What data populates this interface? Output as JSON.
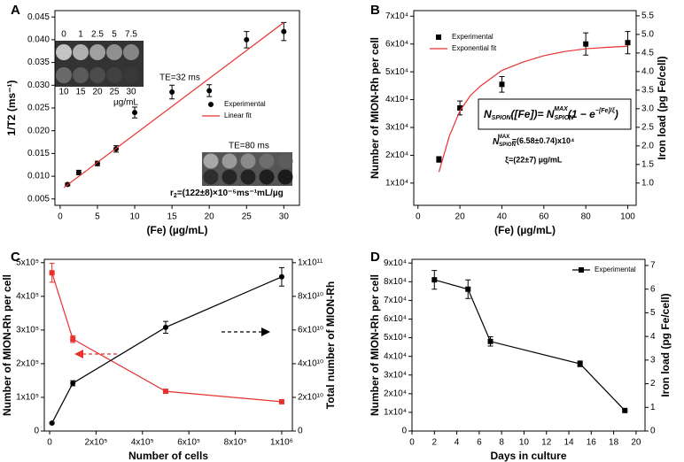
{
  "chart_data": [
    {
      "type": "scatter",
      "panel_label": "A",
      "xlabel": "(Fe) (µg/mL)",
      "ylabel": "1/T2 (ms⁻¹)",
      "xlim": [
        -0.7,
        32.1
      ],
      "xticks": [
        0,
        5,
        10,
        15,
        20,
        25,
        30
      ],
      "ylim": [
        0.0036,
        0.0464
      ],
      "yticks": [
        0.005,
        {
          "value": 0.01,
          "label": "0.010"
        },
        0.015,
        {
          "value": 0.02,
          "label": "0.020"
        },
        0.025,
        {
          "value": 0.03,
          "label": "0.030"
        },
        0.035,
        {
          "value": 0.04,
          "label": "0.040"
        },
        0.045
      ],
      "series": [
        {
          "name": "Experimental",
          "color": "#000000",
          "mode": "markers",
          "marker": "circle",
          "x": [
            1,
            2.5,
            5,
            7.5,
            10,
            15,
            20,
            25,
            30
          ],
          "values": [
            0.0082,
            0.0108,
            0.0128,
            0.016,
            0.024,
            0.0285,
            0.0288,
            0.04,
            0.0418
          ],
          "errors": [
            0.0003,
            0.0005,
            0.0005,
            0.0007,
            0.0012,
            0.0015,
            0.0013,
            0.0018,
            0.002
          ]
        },
        {
          "name": "Linear fit",
          "color": "#e8312f",
          "mode": "line",
          "x": [
            0.5,
            30
          ],
          "values": [
            0.0075,
            0.0438
          ]
        }
      ],
      "legend": "center-right",
      "annotations": {
        "te_short": "TE=32 ms",
        "te_long": "TE=80 ms",
        "concentrations_top": [
          "0",
          "1",
          "2.5",
          "5",
          "7.5"
        ],
        "concentrations_bottom": [
          "10",
          "15",
          "20",
          "25",
          "30"
        ],
        "concentration_unit": "µg/mL",
        "relaxivity": "r",
        "relaxivity_sub": "2",
        "relaxivity_rest": "=(122±8)×10⁻⁵ms⁻¹mL/µg"
      }
    },
    {
      "type": "scatter",
      "panel_label": "B",
      "xlabel": "(Fe) (µg/mL)",
      "ylabel": "Number of MION-Rh per cell",
      "y2label": "Iron load (pg Fe/cell)",
      "xlim": [
        -2,
        104
      ],
      "xticks": [
        0,
        20,
        40,
        60,
        80,
        100
      ],
      "ylim": [
        2000,
        72000
      ],
      "yticks": [
        {
          "value": 10000,
          "label": "1x10⁴"
        },
        {
          "value": 20000,
          "label": "2x10⁴"
        },
        {
          "value": 30000,
          "label": "3x10⁴"
        },
        {
          "value": 40000,
          "label": "4x10⁴"
        },
        {
          "value": 50000,
          "label": "5x10⁴"
        },
        {
          "value": 60000,
          "label": "6x10⁴"
        },
        {
          "value": 70000,
          "label": "7x10⁴"
        }
      ],
      "y2lim": [
        0.4,
        5.64
      ],
      "y2ticks": [
        {
          "value": 1,
          "label": "1.0"
        },
        1.5,
        {
          "value": 2,
          "label": "2.0"
        },
        2.5,
        {
          "value": 3,
          "label": "3.0"
        },
        3.5,
        {
          "value": 4,
          "label": "4.0"
        },
        4.5,
        {
          "value": 5,
          "label": "5.0"
        },
        5.5
      ],
      "series": [
        {
          "name": "Experimental",
          "color": "#000000",
          "mode": "markers",
          "marker": "square",
          "x": [
            10,
            20,
            40,
            80,
            100
          ],
          "values": [
            18500,
            37000,
            45500,
            60000,
            60500
          ],
          "errors": [
            1000,
            2500,
            2800,
            4000,
            4000
          ]
        },
        {
          "name": "Exponential fit",
          "color": "#e8312f",
          "mode": "line",
          "x": [
            10,
            15,
            20,
            25,
            30,
            40,
            50,
            60,
            70,
            80,
            90,
            100
          ],
          "values": [
            14000,
            27000,
            36000,
            41500,
            45000,
            50500,
            53500,
            55800,
            57300,
            58300,
            58800,
            59200
          ]
        }
      ],
      "legend": "upper-left",
      "annotations": {
        "fit_formula": [
          "N",
          "SPION",
          "([Fe])= N",
          "SPION",
          "MAX",
          "(1 − e",
          "−[Fe]/ξ",
          ")"
        ],
        "fit_max": [
          "N",
          "SPION",
          "MAX",
          " =(6.58±0.74)x10⁴"
        ],
        "fit_xi": "ξ=(22±7) µg/mL"
      }
    },
    {
      "type": "line",
      "panel_label": "C",
      "xlabel": "Number of cells",
      "ylabel": "Number of MION-Rh per cell",
      "y2label": "Total number of MION-Rh",
      "xlim": [
        -23000,
        1046000
      ],
      "xticks": [
        0,
        {
          "value": 200000,
          "label": "2x10⁵"
        },
        {
          "value": 400000,
          "label": "4x10⁵"
        },
        {
          "value": 600000,
          "label": "6x10⁵"
        },
        {
          "value": 800000,
          "label": "8x10⁵"
        },
        {
          "value": 1000000,
          "label": "1x10⁶"
        }
      ],
      "ylim": [
        0,
        510000
      ],
      "yticks": [
        0,
        {
          "value": 100000,
          "label": "1x10⁵"
        },
        {
          "value": 200000,
          "label": "2x10⁵"
        },
        {
          "value": 300000,
          "label": "3x10⁵"
        },
        {
          "value": 400000,
          "label": "4x10⁵"
        },
        {
          "value": 500000,
          "label": "5x10⁵"
        }
      ],
      "y2lim": [
        0,
        102000000000
      ],
      "y2ticks": [
        0,
        {
          "value": 20000000000,
          "label": "2x10¹⁰"
        },
        {
          "value": 40000000000,
          "label": "4x10¹⁰"
        },
        {
          "value": 60000000000,
          "label": "6x10¹⁰"
        },
        {
          "value": 80000000000,
          "label": "8x10¹⁰"
        },
        {
          "value": 100000000000,
          "label": "1x10¹¹"
        }
      ],
      "series": [
        {
          "color": "#e8312f",
          "mode": "lines+markers",
          "marker": "square",
          "x": [
            10000,
            100000,
            500000,
            1000000
          ],
          "values": [
            470000,
            273000,
            118000,
            87000
          ],
          "errors": [
            28000,
            10000,
            5000,
            3000
          ]
        },
        {
          "color": "#000000",
          "mode": "lines+markers",
          "marker": "circle",
          "axis": "y2",
          "x": [
            10000,
            100000,
            500000,
            1000000
          ],
          "values": [
            4700000000,
            28400000000,
            61600000000,
            91600000000
          ],
          "errors": [
            500000000,
            1500000000,
            3500000000,
            5500000000
          ]
        }
      ]
    },
    {
      "type": "line",
      "panel_label": "D",
      "xlabel": "Days in culture",
      "ylabel": "Number of MION-Rh per cell",
      "y2label": "Iron load (pg Fe/cell)",
      "xlim": [
        0,
        20.8
      ],
      "xticks": [
        0,
        2,
        4,
        6,
        8,
        10,
        12,
        14,
        16,
        18,
        20
      ],
      "ylim": [
        0,
        92000
      ],
      "yticks": [
        0,
        {
          "value": 10000,
          "label": "1x10⁴"
        },
        {
          "value": 20000,
          "label": "2x10⁴"
        },
        {
          "value": 30000,
          "label": "3x10⁴"
        },
        {
          "value": 40000,
          "label": "4x10⁴"
        },
        {
          "value": 50000,
          "label": "5x10⁴"
        },
        {
          "value": 60000,
          "label": "6x10⁴"
        },
        {
          "value": 70000,
          "label": "7x10⁴"
        },
        {
          "value": 80000,
          "label": "8x10⁴"
        },
        {
          "value": 90000,
          "label": "9x10⁴"
        }
      ],
      "y2lim": [
        0,
        7.26
      ],
      "y2ticks": [
        0,
        1,
        2,
        3,
        4,
        5,
        6,
        7
      ],
      "series": [
        {
          "name": "Experimental",
          "color": "#000000",
          "mode": "lines+markers",
          "marker": "square",
          "x": [
            2,
            5,
            7,
            15,
            19
          ],
          "values": [
            81000,
            76000,
            48000,
            36000,
            11000
          ],
          "errors": [
            5000,
            5000,
            2500,
            1500,
            500
          ]
        }
      ],
      "legend": "upper-right"
    }
  ]
}
